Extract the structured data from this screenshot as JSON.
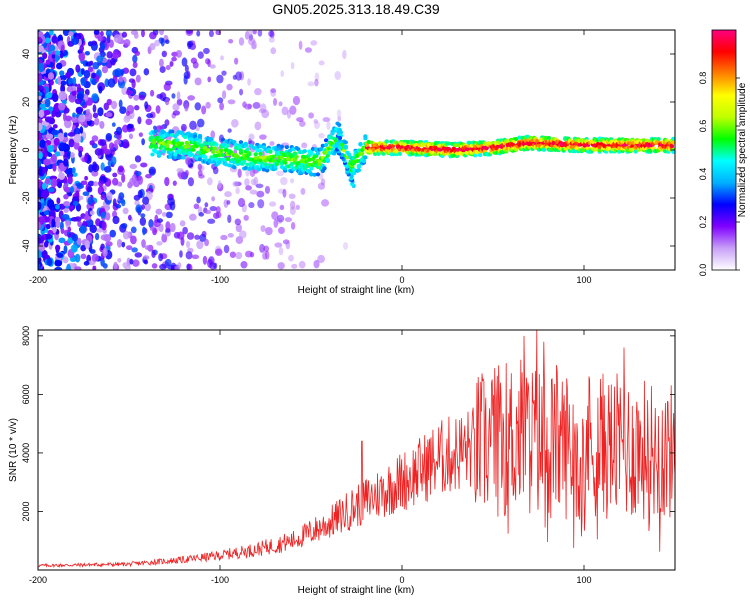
{
  "title": "GN05.2025.313.18.49.C39",
  "chart_data": [
    {
      "type": "heatmap",
      "xlabel": "Height of straight line (km)",
      "ylabel": "Frequency (Hz)",
      "xlim": [
        -200,
        150
      ],
      "ylim": [
        -50,
        50
      ],
      "xticks": [
        -200,
        -100,
        0,
        100
      ],
      "yticks": [
        40,
        20,
        0,
        -20,
        -40
      ],
      "colorbar": {
        "label": "Normalized spectral amplitude",
        "ticks": [
          "0.0",
          "0.2",
          "0.4",
          "0.6",
          "0.8"
        ],
        "range": [
          0,
          1
        ],
        "colors": [
          "#ffffff",
          "#c8a0f8",
          "#8000ff",
          "#0000ff",
          "#00b0ff",
          "#00ffff",
          "#00ff00",
          "#c0ff00",
          "#ffff00",
          "#ff8000",
          "#ff0000",
          "#ff0080"
        ]
      },
      "ridge": [
        {
          "x": -135,
          "y": 3
        },
        {
          "x": -120,
          "y": 2
        },
        {
          "x": -100,
          "y": -1
        },
        {
          "x": -80,
          "y": -3
        },
        {
          "x": -60,
          "y": -4
        },
        {
          "x": -45,
          "y": -5
        },
        {
          "x": -35,
          "y": 6
        },
        {
          "x": -28,
          "y": -8
        },
        {
          "x": -20,
          "y": 1
        },
        {
          "x": 0,
          "y": 1
        },
        {
          "x": 30,
          "y": 0
        },
        {
          "x": 50,
          "y": 1
        },
        {
          "x": 70,
          "y": 3
        },
        {
          "x": 100,
          "y": 2
        },
        {
          "x": 150,
          "y": 2
        }
      ]
    },
    {
      "type": "line",
      "xlabel": "Height of straight line (km)",
      "ylabel": "SNR (10 * v/v)",
      "xlim": [
        -200,
        150
      ],
      "ylim": [
        0,
        8200
      ],
      "xticks": [
        -200,
        -100,
        0,
        100
      ],
      "yticks": [
        2000,
        4000,
        6000,
        8000
      ],
      "color": "#ee2222",
      "envelope": [
        {
          "x": -200,
          "y": 150
        },
        {
          "x": -150,
          "y": 200
        },
        {
          "x": -120,
          "y": 350
        },
        {
          "x": -100,
          "y": 500
        },
        {
          "x": -80,
          "y": 700
        },
        {
          "x": -60,
          "y": 1000
        },
        {
          "x": -40,
          "y": 1600
        },
        {
          "x": -25,
          "y": 2200
        },
        {
          "x": -10,
          "y": 2700
        },
        {
          "x": 5,
          "y": 3200
        },
        {
          "x": 20,
          "y": 3800
        },
        {
          "x": 35,
          "y": 4100
        },
        {
          "x": 50,
          "y": 4400
        },
        {
          "x": 65,
          "y": 4600
        },
        {
          "x": 80,
          "y": 4300
        },
        {
          "x": 100,
          "y": 4300
        },
        {
          "x": 120,
          "y": 4200
        },
        {
          "x": 150,
          "y": 4000
        }
      ],
      "peaks": [
        {
          "x": -22,
          "y": 4400
        },
        {
          "x": 54,
          "y": 6400
        },
        {
          "x": 67,
          "y": 8000
        },
        {
          "x": 74,
          "y": 8200
        },
        {
          "x": 78,
          "y": 7800
        },
        {
          "x": 85,
          "y": 7000
        },
        {
          "x": 103,
          "y": 6500
        },
        {
          "x": 122,
          "y": 7600
        },
        {
          "x": 135,
          "y": 5800
        }
      ]
    }
  ]
}
